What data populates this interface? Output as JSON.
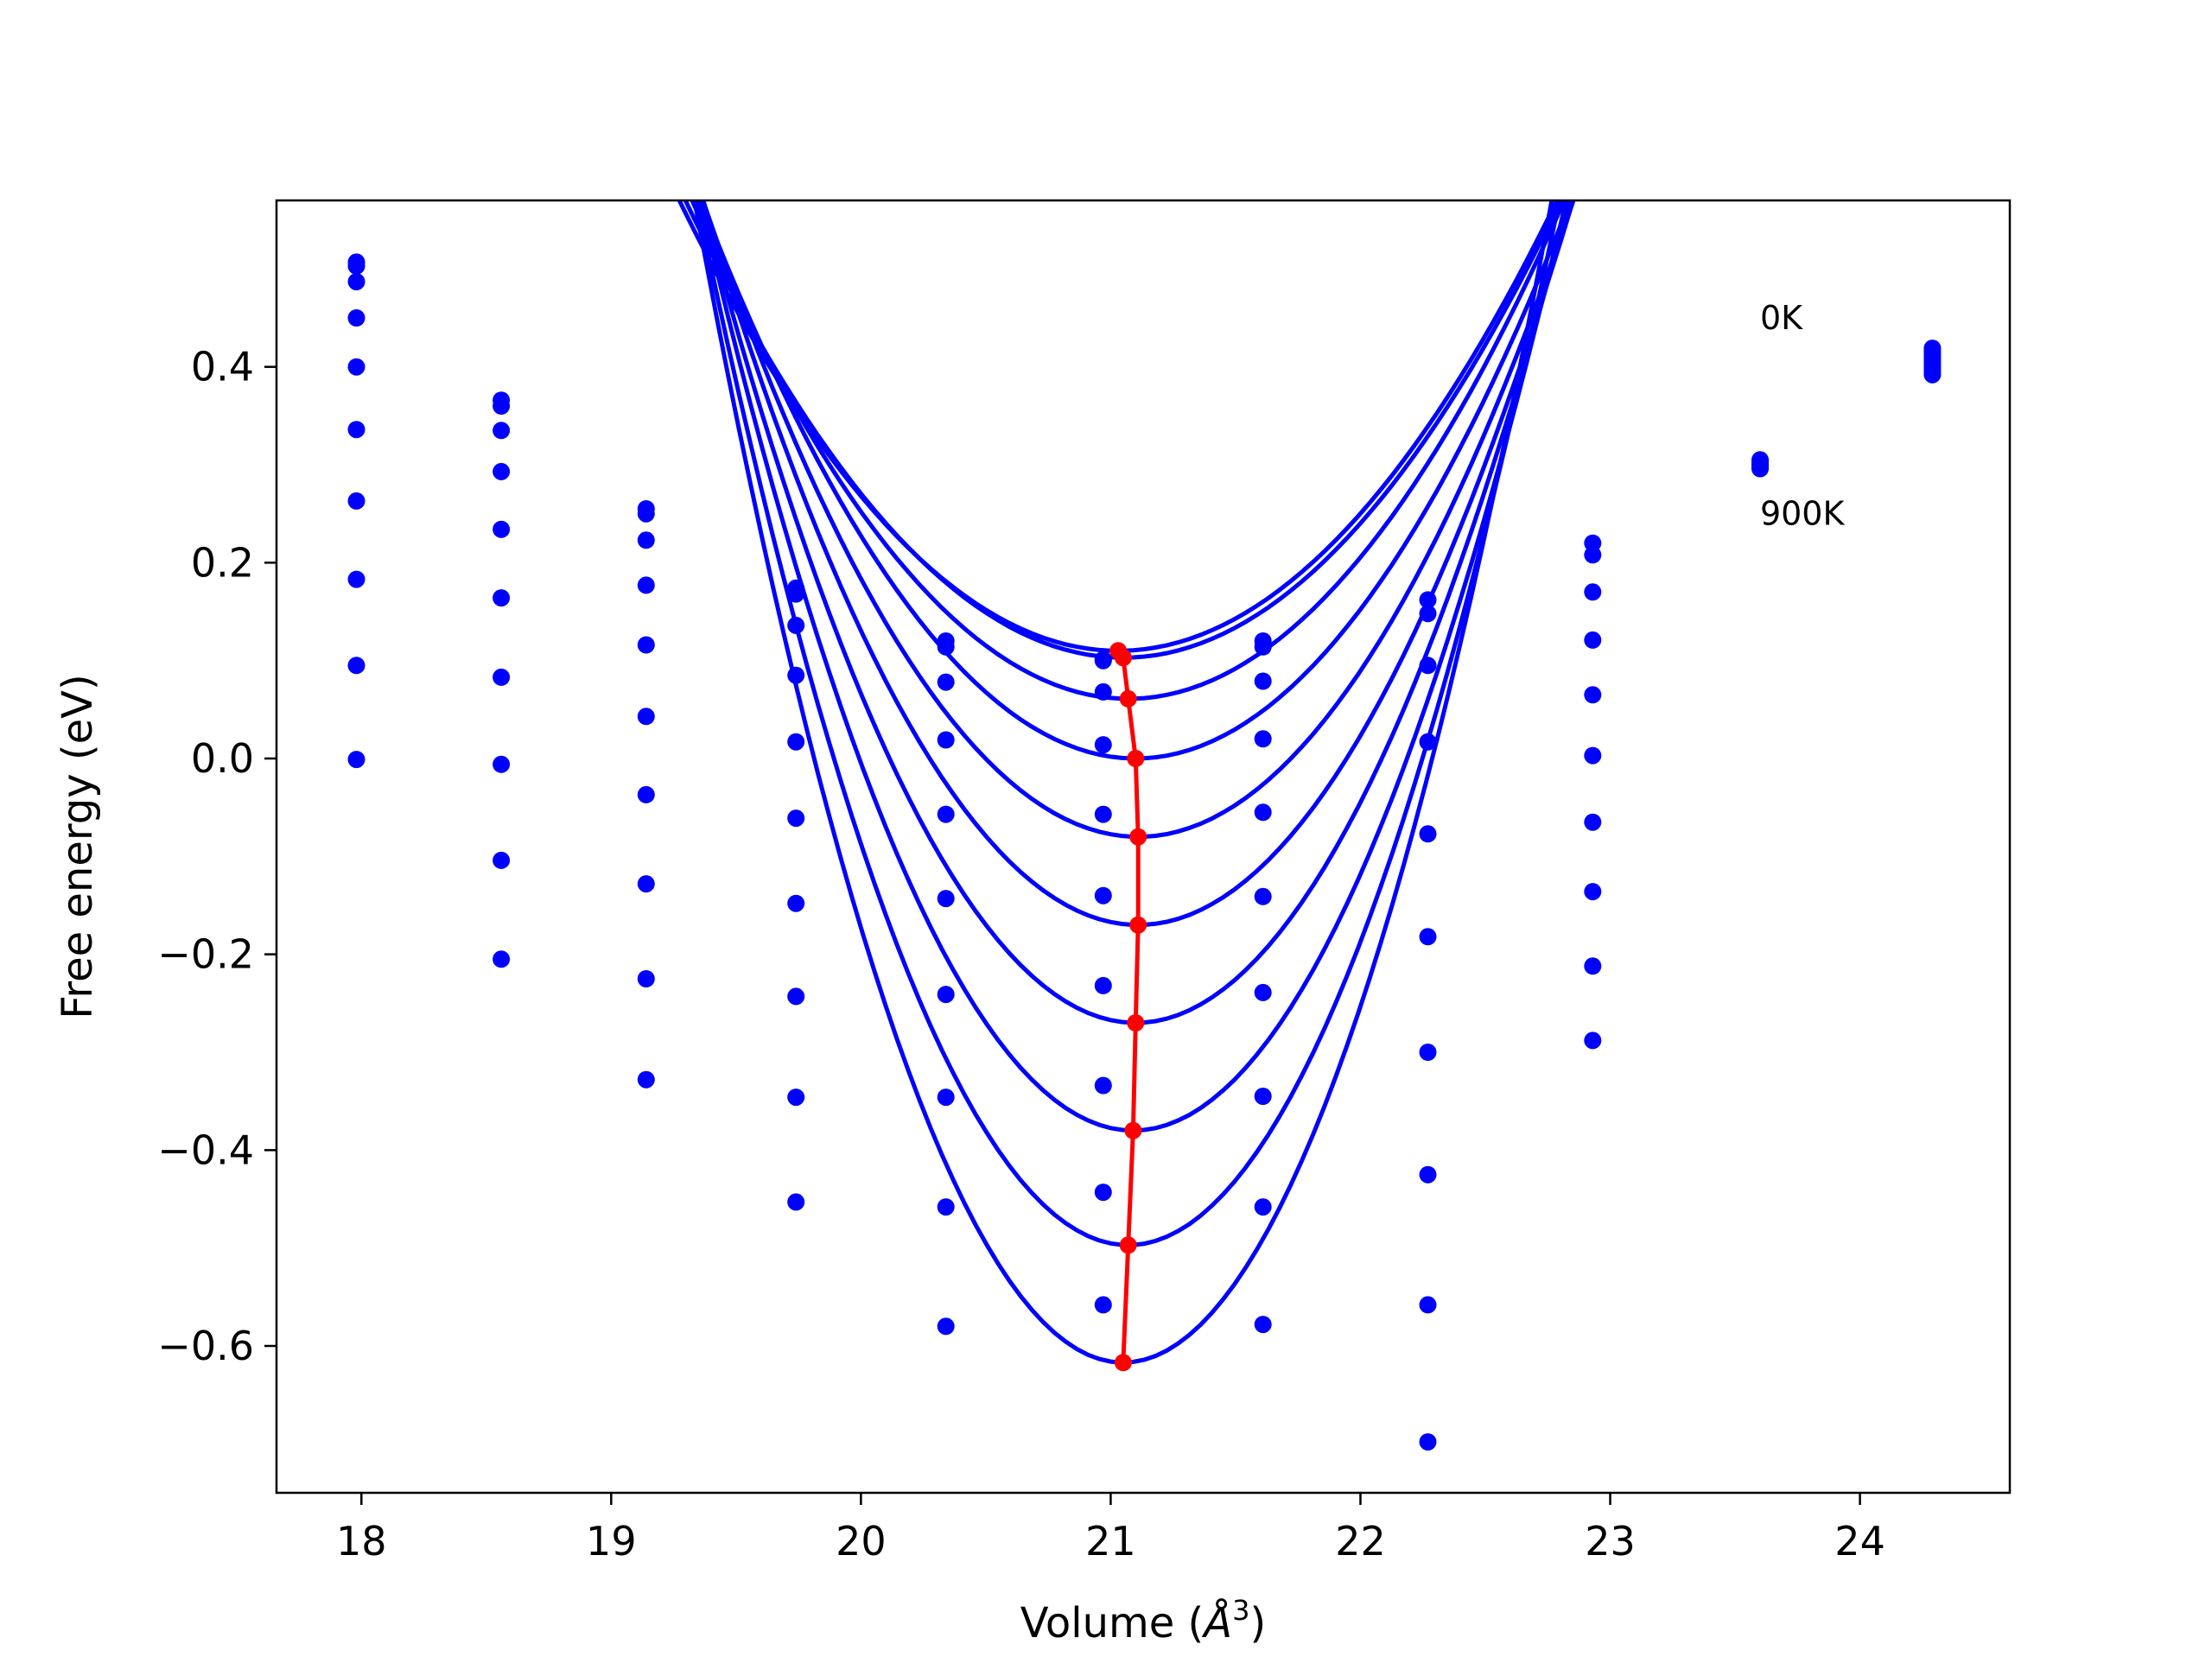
{
  "chart_data": {
    "type": "line",
    "title": "",
    "xlabel_main": "Volume (",
    "xlabel_unit": "Å",
    "xlabel_sup": "3",
    "xlabel_close": ")",
    "ylabel": "Free energy (eV)",
    "xlim": [
      17.66,
      24.6
    ],
    "ylim": [
      -0.75,
      0.57
    ],
    "x_ticks": [
      18,
      19,
      20,
      21,
      22,
      23,
      24
    ],
    "x_tick_labels": [
      "18",
      "19",
      "20",
      "21",
      "22",
      "23",
      "24"
    ],
    "y_ticks": [
      0.4,
      0.2,
      0.0,
      -0.2,
      -0.4,
      -0.6
    ],
    "y_tick_labels": [
      "0.4",
      "0.2",
      "0.0",
      "−0.2",
      "−0.4",
      "−0.6"
    ],
    "grid": false,
    "legend": "none",
    "annotations": [
      {
        "text": "0K",
        "x": 23.6,
        "y": 0.45
      },
      {
        "text": "900K",
        "x": 23.6,
        "y": 0.25
      }
    ],
    "colors": {
      "curves": "#0000ff",
      "points": "#0000ff",
      "minimum_path": "#ff0000"
    },
    "point_volumes": [
      17.98,
      18.56,
      19.14,
      19.74,
      20.34,
      20.97,
      21.61,
      22.27,
      22.93,
      23.6,
      24.29
    ],
    "fit_x_range": [
      17.98,
      24.29
    ],
    "series": [
      {
        "min_volume": 21.03,
        "min_energy": 0.11,
        "curvature": 0.149,
        "points": [
          0.507,
          0.366,
          0.255,
          0.174,
          0.12,
          0.101,
          0.12,
          0.162,
          0.22,
          0.305,
          0.392
        ]
      },
      {
        "min_volume": 21.05,
        "min_energy": 0.103,
        "curvature": 0.152,
        "points": [
          0.503,
          0.36,
          0.25,
          0.168,
          0.114,
          0.1,
          0.114,
          0.148,
          0.208,
          0.304,
          0.395
        ]
      },
      {
        "min_volume": 21.07,
        "min_energy": 0.061,
        "curvature": 0.167,
        "points": [
          0.487,
          0.335,
          0.223,
          0.136,
          0.078,
          0.068,
          0.079,
          0.095,
          0.17,
          0.303,
          0.398
        ]
      },
      {
        "min_volume": 21.1,
        "min_energy": 0.0,
        "curvature": 0.188,
        "points": [
          0.45,
          0.293,
          0.177,
          0.085,
          0.019,
          0.014,
          0.02,
          0.017,
          0.121,
          0.302,
          0.401
        ]
      },
      {
        "min_volume": 21.11,
        "min_energy": -0.08,
        "curvature": 0.214,
        "points": [
          0.4,
          0.234,
          0.116,
          0.017,
          -0.057,
          -0.057,
          -0.055,
          -0.077,
          0.065,
          0.301,
          0.404
        ]
      },
      {
        "min_volume": 21.11,
        "min_energy": -0.17,
        "curvature": 0.244,
        "points": [
          0.336,
          0.164,
          0.043,
          -0.061,
          -0.143,
          -0.14,
          -0.141,
          -0.182,
          0.003,
          0.3,
          0.407
        ]
      },
      {
        "min_volume": 21.1,
        "min_energy": -0.27,
        "curvature": 0.278,
        "points": [
          0.263,
          0.083,
          -0.037,
          -0.148,
          -0.241,
          -0.232,
          -0.239,
          -0.3,
          -0.065,
          0.299,
          0.41
        ]
      },
      {
        "min_volume": 21.09,
        "min_energy": -0.38,
        "curvature": 0.316,
        "points": [
          0.183,
          -0.006,
          -0.128,
          -0.243,
          -0.346,
          -0.334,
          -0.345,
          -0.425,
          -0.136,
          0.298,
          0.413
        ]
      },
      {
        "min_volume": 21.07,
        "min_energy": -0.497,
        "curvature": 0.358,
        "points": [
          0.095,
          -0.104,
          -0.225,
          -0.346,
          -0.458,
          -0.443,
          -0.458,
          -0.558,
          -0.212,
          0.297,
          0.416
        ]
      },
      {
        "min_volume": 21.05,
        "min_energy": -0.617,
        "curvature": 0.403,
        "points": [
          -0.001,
          -0.205,
          -0.328,
          -0.453,
          -0.58,
          -0.558,
          -0.578,
          -0.698,
          -0.288,
          0.296,
          0.419
        ]
      }
    ],
    "minimum_path": {
      "x": [
        21.03,
        21.05,
        21.07,
        21.1,
        21.11,
        21.11,
        21.1,
        21.09,
        21.07,
        21.05
      ],
      "y": [
        0.11,
        0.103,
        0.061,
        0.0,
        -0.08,
        -0.17,
        -0.27,
        -0.38,
        -0.497,
        -0.617
      ]
    }
  }
}
